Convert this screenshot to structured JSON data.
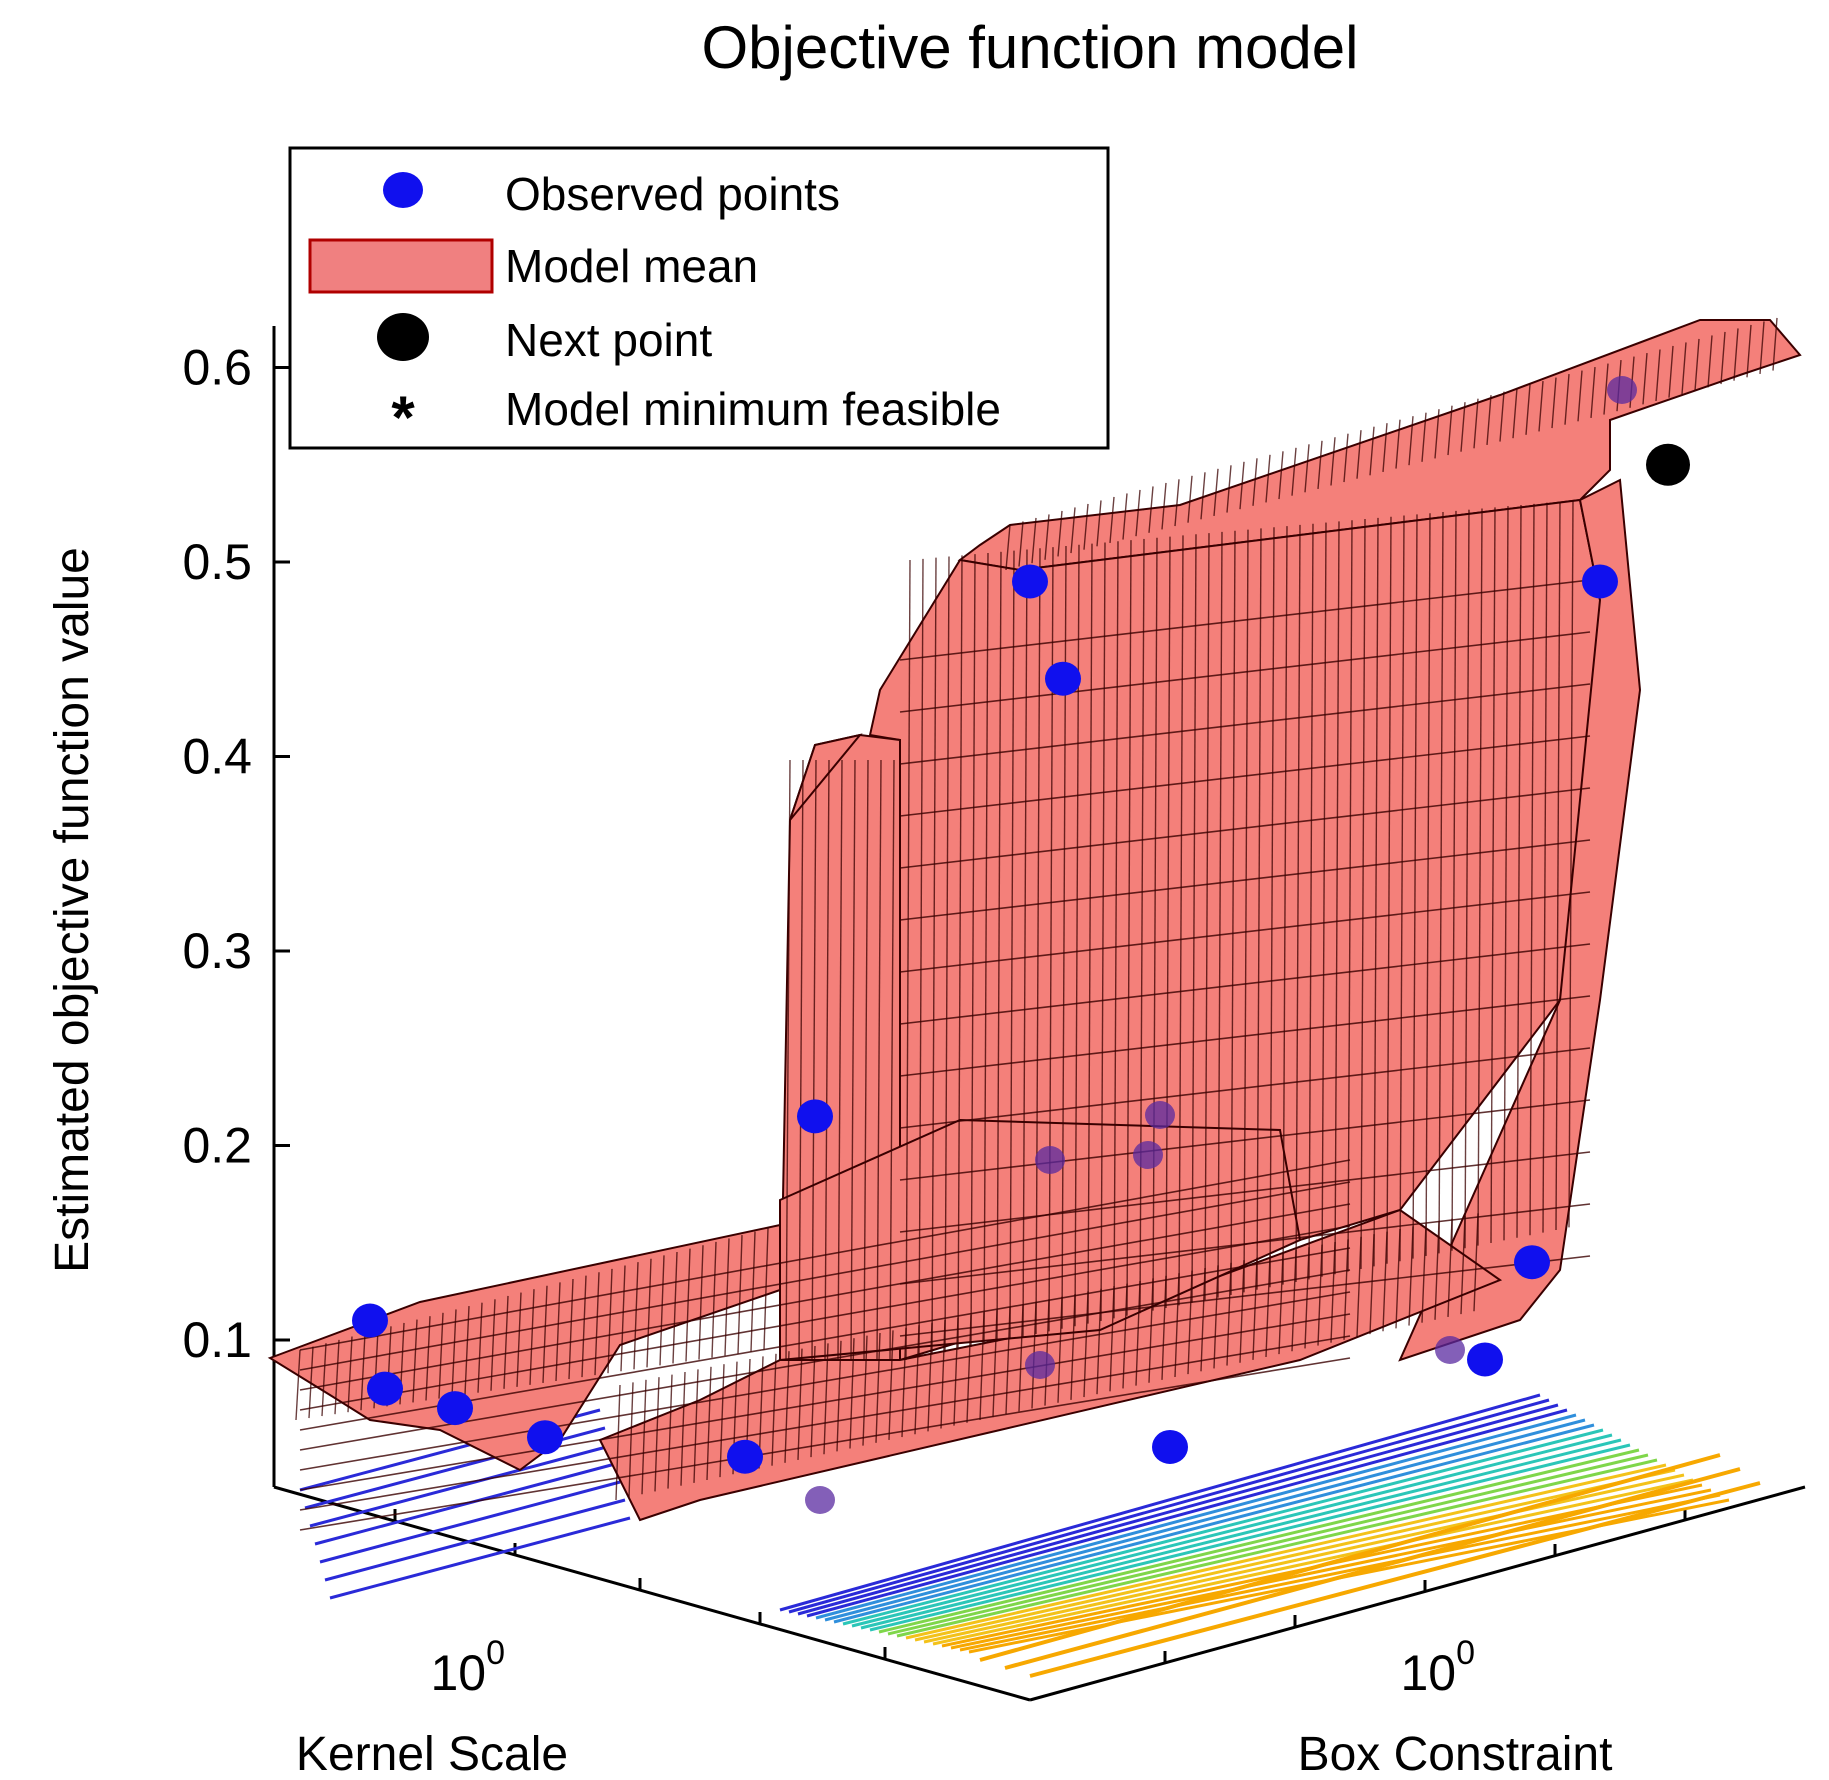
{
  "chart_data": {
    "type": "surface",
    "title": "Objective function model",
    "zlabel": "Estimated objective function value",
    "xlabel": "Kernel Scale",
    "ylabel": "Box Constraint",
    "zlim": [
      0.04,
      0.63
    ],
    "z_ticks": [
      "0.6",
      "0.5",
      "0.4",
      "0.3",
      "0.2",
      "0.1"
    ],
    "z_tick_values": [
      0.6,
      0.5,
      0.4,
      0.3,
      0.2,
      0.1
    ],
    "x_tick_label": "10",
    "x_tick_exp": "0",
    "y_tick_label": "10",
    "y_tick_exp": "0",
    "legend": {
      "placement": "top-left",
      "entries": [
        {
          "label": "Observed points",
          "marker": "dot",
          "color": "#1010ee"
        },
        {
          "label": "Model mean",
          "marker": "patch",
          "color": "#f08080"
        },
        {
          "label": "Next point",
          "marker": "dot",
          "color": "#000000"
        },
        {
          "label": "Model minimum feasible",
          "marker": "asterisk",
          "color": "#ff0000"
        }
      ]
    },
    "surface_color": "#f4807a",
    "mesh_color": "#3a0000",
    "contour_colors": [
      "#2a2ad8",
      "#2f8fdc",
      "#2bc6b8",
      "#7fd64a",
      "#f3c21a",
      "#f7a800"
    ],
    "observed_points": [
      {
        "kernel_scale": "low",
        "box_constraint": "low",
        "value": 0.11
      },
      {
        "kernel_scale": "low",
        "box_constraint": "low",
        "value": 0.075
      },
      {
        "kernel_scale": "low",
        "box_constraint": "low",
        "value": 0.065
      },
      {
        "kernel_scale": "mid",
        "box_constraint": "low",
        "value": 0.05
      },
      {
        "kernel_scale": "high",
        "box_constraint": "low",
        "value": 0.04
      },
      {
        "kernel_scale": "mid",
        "box_constraint": "mid",
        "value": 0.215
      },
      {
        "kernel_scale": "mid",
        "box_constraint": "mid",
        "value": 0.49
      },
      {
        "kernel_scale": "mid",
        "box_constraint": "mid",
        "value": 0.44
      },
      {
        "kernel_scale": "high",
        "box_constraint": "high",
        "value": 0.49
      },
      {
        "kernel_scale": "high",
        "box_constraint": "high",
        "value": 0.14
      },
      {
        "kernel_scale": "high",
        "box_constraint": "high",
        "value": 0.09
      },
      {
        "kernel_scale": "high",
        "box_constraint": "mid",
        "value": 0.045
      }
    ],
    "next_point": {
      "value": 0.55
    }
  }
}
